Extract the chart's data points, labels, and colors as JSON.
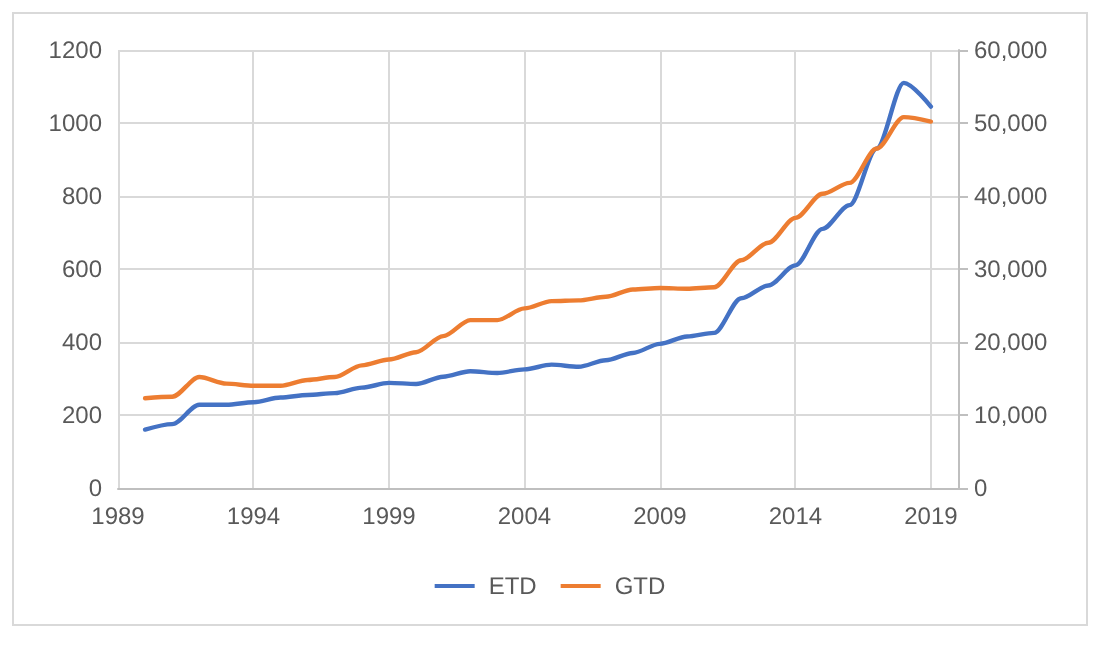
{
  "chart_data": {
    "type": "line",
    "x": [
      1990,
      1991,
      1992,
      1993,
      1994,
      1995,
      1996,
      1997,
      1998,
      1999,
      2000,
      2001,
      2002,
      2003,
      2004,
      2005,
      2006,
      2007,
      2008,
      2009,
      2010,
      2011,
      2012,
      2013,
      2014,
      2015,
      2016,
      2017,
      2018,
      2019
    ],
    "series": [
      {
        "name": "ETD",
        "color": "#4472c4",
        "values": [
          160,
          175,
          228,
          228,
          235,
          248,
          255,
          260,
          275,
          288,
          285,
          305,
          320,
          315,
          325,
          338,
          332,
          350,
          370,
          395,
          415,
          425,
          520,
          555,
          610,
          710,
          775,
          930,
          1110,
          1045
        ]
      },
      {
        "name": "GTD",
        "color": "#ed7d31",
        "axis": "y2",
        "values": [
          12300,
          12500,
          15200,
          14300,
          14000,
          14000,
          14800,
          15200,
          16800,
          17600,
          18600,
          20800,
          23000,
          23000,
          24600,
          25600,
          25700,
          26200,
          27200,
          27400,
          27300,
          27500,
          31200,
          33600,
          37000,
          40300,
          41800,
          46500,
          50800,
          50200
        ]
      }
    ],
    "xlim": [
      1989,
      2020
    ],
    "xticks": [
      1989,
      1994,
      1999,
      2004,
      2009,
      2014,
      2019
    ],
    "ylim": [
      0,
      1200
    ],
    "yticks": [
      0,
      200,
      400,
      600,
      800,
      1000,
      1200
    ],
    "y2lim": [
      0,
      60000
    ],
    "y2ticks": [
      0,
      {
        "value": 10000,
        "label": "10,000"
      },
      {
        "value": 20000,
        "label": "20,000"
      },
      {
        "value": 30000,
        "label": "30,000"
      },
      {
        "value": 40000,
        "label": "40,000"
      },
      {
        "value": 50000,
        "label": "50,000"
      },
      {
        "value": 60000,
        "label": "60,000"
      }
    ],
    "grid": true,
    "legend": "bottom",
    "marker": "none",
    "line_style": "solid"
  }
}
